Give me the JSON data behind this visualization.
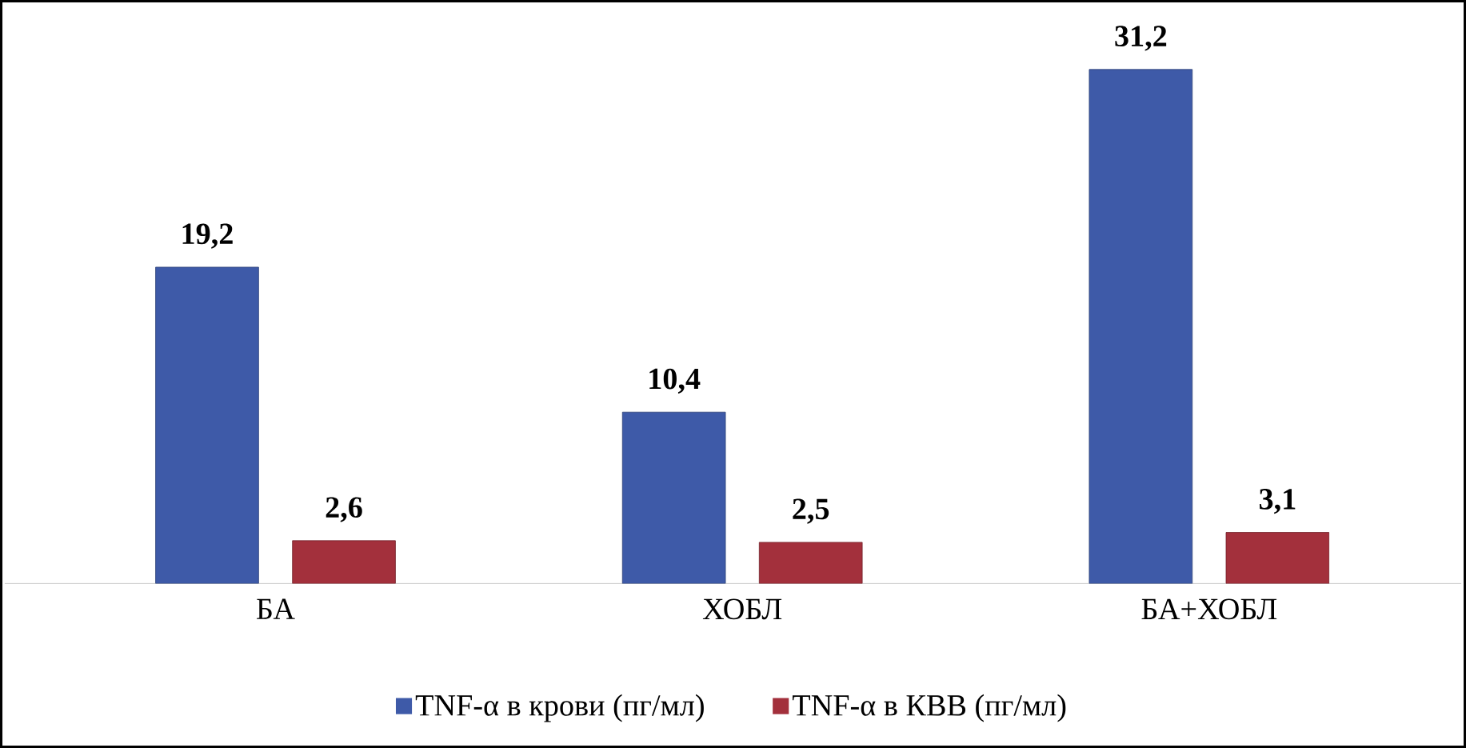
{
  "chart_data": {
    "type": "bar",
    "categories": [
      "БА",
      "ХОБЛ",
      "БА+ХОБЛ"
    ],
    "series": [
      {
        "name": "TNF-α в крови (пг/мл)",
        "color": "#3e5aa8",
        "values": [
          19.2,
          10.4,
          31.2
        ],
        "value_labels": [
          "19,2",
          "10,4",
          "31,2"
        ]
      },
      {
        "name": "TNF-α в КВВ (пг/мл)",
        "color": "#a3303c",
        "values": [
          2.6,
          2.5,
          3.1
        ],
        "value_labels": [
          "2,6",
          "2,5",
          "3,1"
        ]
      }
    ],
    "legend": "bottom",
    "grid": false
  }
}
